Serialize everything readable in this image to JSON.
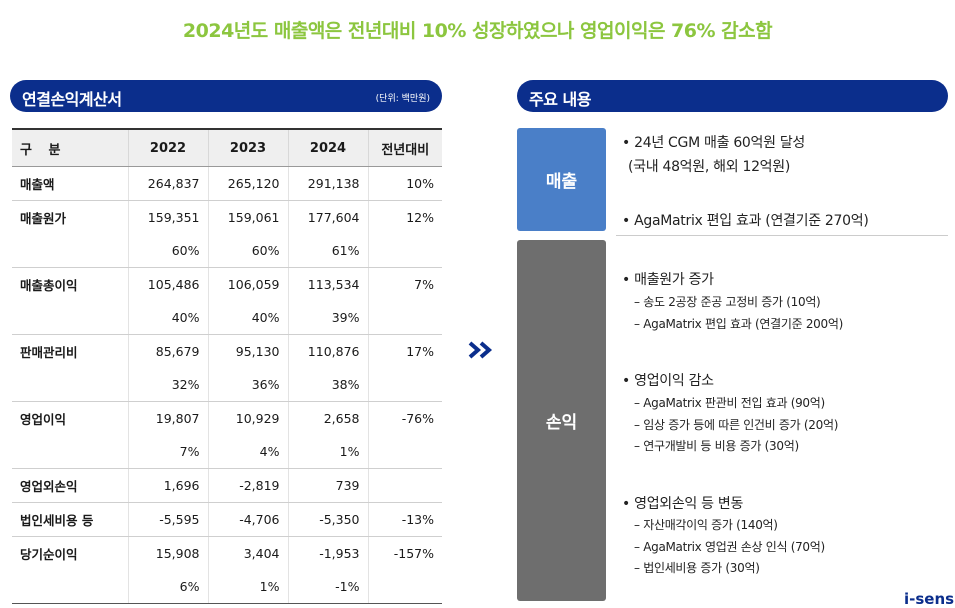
{
  "headline": "2024년도 매출액은 전년대비 10% 성장하였으나 영업이익은 76% 감소함",
  "left_panel": {
    "title": "연결손익계산서",
    "unit": "(단위: 백만원)",
    "headers": [
      "구 분",
      "2022",
      "2023",
      "2024",
      "전년대비"
    ],
    "rows": [
      {
        "label": "매출액",
        "v": [
          "264,837",
          "265,120",
          "291,138",
          "10%"
        ]
      },
      {
        "label": "매출원가",
        "v": [
          "159,351",
          "159,061",
          "177,604",
          "12%"
        ],
        "pct": [
          "60%",
          "60%",
          "61%"
        ]
      },
      {
        "label": "매출총이익",
        "v": [
          "105,486",
          "106,059",
          "113,534",
          "7%"
        ],
        "pct": [
          "40%",
          "40%",
          "39%"
        ]
      },
      {
        "label": "판매관리비",
        "v": [
          "85,679",
          "95,130",
          "110,876",
          "17%"
        ],
        "pct": [
          "32%",
          "36%",
          "38%"
        ]
      },
      {
        "label": "영업이익",
        "v": [
          "19,807",
          "10,929",
          "2,658",
          "-76%"
        ],
        "pct": [
          "7%",
          "4%",
          "1%"
        ]
      },
      {
        "label": "영업외손익",
        "v": [
          "1,696",
          "-2,819",
          "739",
          ""
        ]
      },
      {
        "label": "법인세비용 등",
        "v": [
          "-5,595",
          "-4,706",
          "-5,350",
          "-13%"
        ]
      },
      {
        "label": "당기순이익",
        "v": [
          "15,908",
          "3,404",
          "-1,953",
          "-157%"
        ],
        "pct": [
          "6%",
          "1%",
          "-1%"
        ]
      }
    ]
  },
  "right_panel": {
    "title": "주요 내용",
    "sales": {
      "label": "매출",
      "b1": "• 24년 CGM 매출 60억원 달성",
      "b1_sub": "(국내 48억원, 해외 12억원)",
      "b2": "• AgaMatrix 편입 효과 (연결기준 270억)"
    },
    "pl": {
      "label": "손익",
      "sections": [
        {
          "head": "• 매출원가 증가",
          "items": [
            "– 송도 2공장 준공 고정비 증가 (10억)",
            "– AgaMatrix 편입 효과 (연결기준 200억)"
          ]
        },
        {
          "head": "• 영업이익 감소",
          "items": [
            "– AgaMatrix 판관비 전입 효과 (90억)",
            "– 임상 증가 등에 따른 인건비 증가 (20억)",
            "– 연구개발비 등 비용 증가 (30억)"
          ]
        },
        {
          "head": "• 영업외손익 등 변동",
          "items": [
            "– 자산매각이익 증가 (140억)",
            "– AgaMatrix 영업권 손상 인식 (70억)",
            "– 법인세비용 증가 (30억)"
          ]
        }
      ]
    }
  },
  "logo": "i-sens",
  "colors": {
    "headline": "#8cc63f",
    "navy": "#0b2e8c",
    "sales_box": "#4a7fc8",
    "pl_box": "#6e6e6e"
  }
}
